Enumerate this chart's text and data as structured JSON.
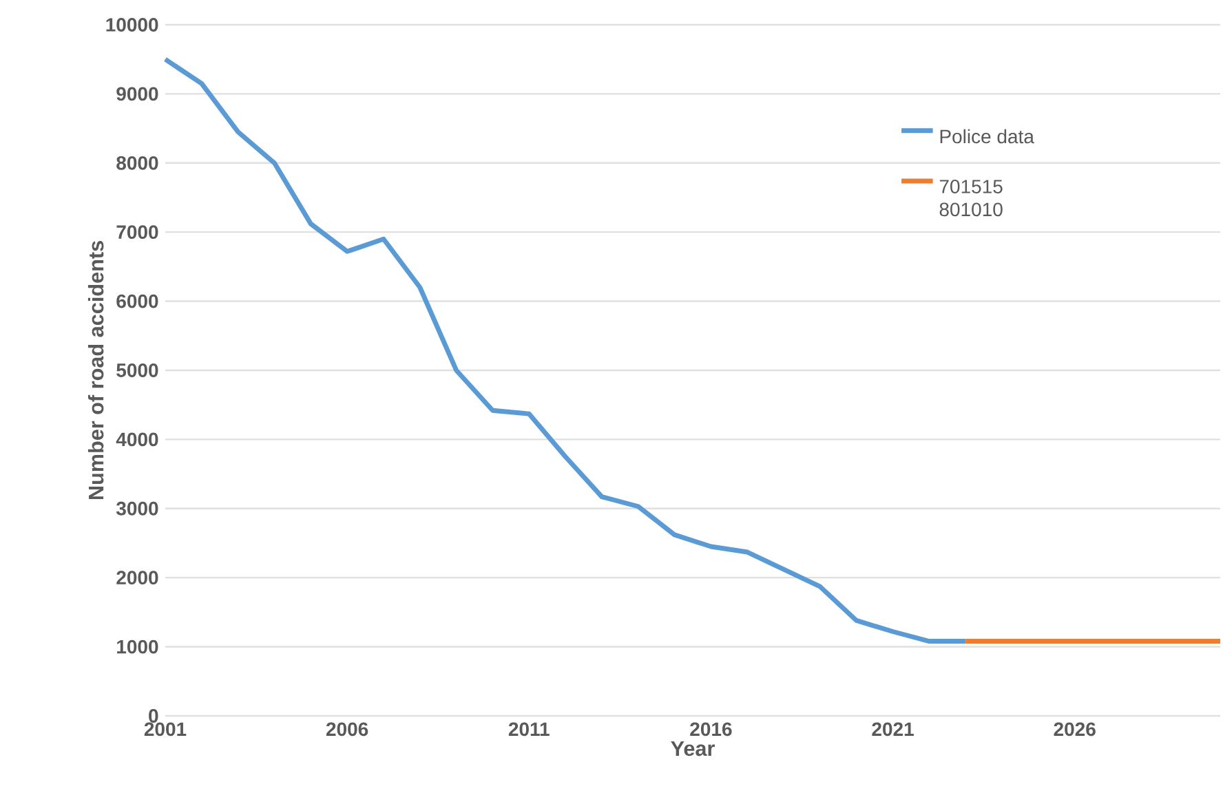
{
  "chart_data": {
    "type": "line",
    "xlabel": "Year",
    "ylabel": "Number of road accidents",
    "xlim": [
      2001,
      2030
    ],
    "xticks": [
      2001,
      2006,
      2011,
      2016,
      2021,
      2026
    ],
    "ylim": [
      0,
      10000
    ],
    "yticks": [
      0,
      1000,
      2000,
      3000,
      4000,
      5000,
      6000,
      7000,
      8000,
      9000,
      10000
    ],
    "grid": "y",
    "legend": "top right",
    "line_style": "solid",
    "marker": "none",
    "series": [
      {
        "name": "Police data",
        "color": "#5b9bd5",
        "x": [
          2001,
          2002,
          2003,
          2004,
          2005,
          2006,
          2007,
          2008,
          2009,
          2010,
          2011,
          2012,
          2013,
          2014,
          2015,
          2016,
          2017,
          2018,
          2019,
          2020,
          2021,
          2022,
          2023
        ],
        "values": [
          9500,
          9150,
          8450,
          8000,
          7120,
          6720,
          6900,
          6200,
          5000,
          4420,
          4370,
          3750,
          3170,
          3030,
          2620,
          2450,
          2370,
          2120,
          1870,
          1380,
          1220,
          1080,
          1080
        ]
      },
      {
        "name": "701515 801010",
        "color": "#ed7d31",
        "x": [
          2023,
          2024,
          2025,
          2026,
          2027,
          2028,
          2029,
          2030
        ],
        "values": [
          1080,
          1080,
          1080,
          1080,
          1080,
          1080,
          1080,
          1080
        ]
      }
    ]
  }
}
